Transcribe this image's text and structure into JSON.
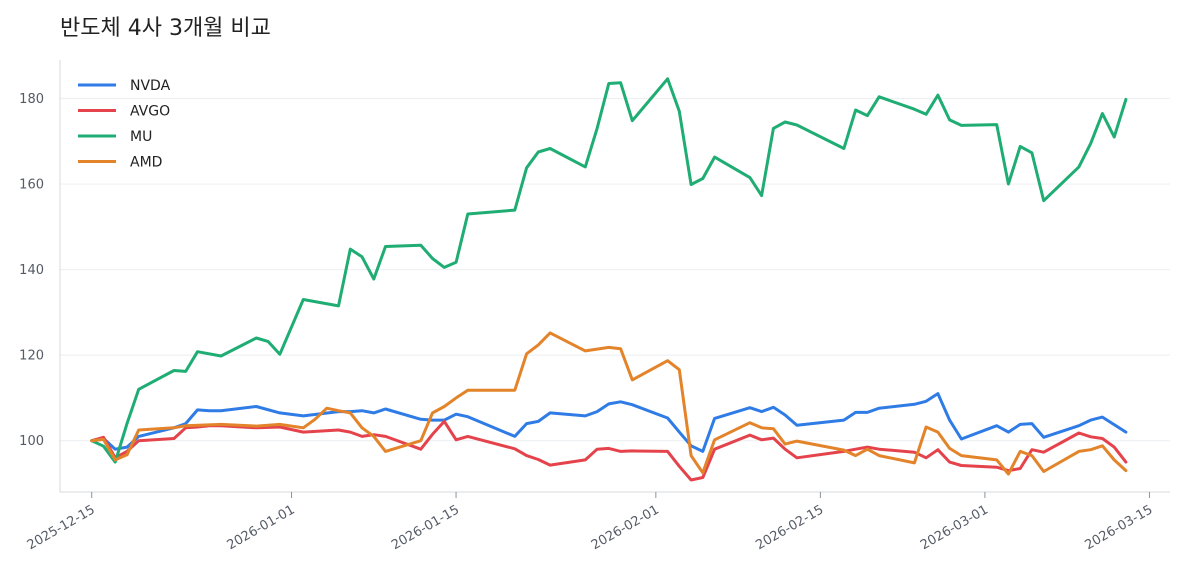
{
  "chart_data": {
    "type": "line",
    "title": "반도체 4사 3개월 비교",
    "xlabel": "",
    "ylabel": "",
    "ylim": [
      88,
      189
    ],
    "yticks": [
      100,
      120,
      140,
      160,
      180
    ],
    "xrange": [
      "2025-12-15",
      "2026-03-16"
    ],
    "xticks": [
      "2025-12-15",
      "2026-01-01",
      "2026-01-15",
      "2026-02-01",
      "2026-02-15",
      "2026-03-01",
      "2026-03-15"
    ],
    "grid": "horizontal",
    "legend_position": "top-left",
    "series": [
      {
        "name": "NVDA",
        "color": "#2f7ce6",
        "points": [
          [
            "2025-12-15",
            100
          ],
          [
            "2025-12-16",
            100.5
          ],
          [
            "2025-12-17",
            98
          ],
          [
            "2025-12-18",
            98.5
          ],
          [
            "2025-12-19",
            101
          ],
          [
            "2025-12-22",
            103
          ],
          [
            "2025-12-23",
            104
          ],
          [
            "2025-12-24",
            107.2
          ],
          [
            "2025-12-25",
            107
          ],
          [
            "2025-12-26",
            107
          ],
          [
            "2025-12-29",
            108
          ],
          [
            "2025-12-31",
            106.5
          ],
          [
            "2026-01-02",
            105.8
          ],
          [
            "2026-01-05",
            106.8
          ],
          [
            "2026-01-06",
            106.8
          ],
          [
            "2026-01-07",
            107
          ],
          [
            "2026-01-08",
            106.5
          ],
          [
            "2026-01-09",
            107.4
          ],
          [
            "2026-01-12",
            105
          ],
          [
            "2026-01-13",
            104.8
          ],
          [
            "2026-01-14",
            104.8
          ],
          [
            "2026-01-15",
            106.2
          ],
          [
            "2026-01-16",
            105.6
          ],
          [
            "2026-01-20",
            101
          ],
          [
            "2026-01-21",
            104
          ],
          [
            "2026-01-22",
            104.5
          ],
          [
            "2026-01-23",
            106.5
          ],
          [
            "2026-01-26",
            105.8
          ],
          [
            "2026-01-27",
            106.8
          ],
          [
            "2026-01-28",
            108.6
          ],
          [
            "2026-01-29",
            109.1
          ],
          [
            "2026-01-30",
            108.4
          ],
          [
            "2026-02-02",
            105.3
          ],
          [
            "2026-02-03",
            102
          ],
          [
            "2026-02-04",
            98.8
          ],
          [
            "2026-02-05",
            97.5
          ],
          [
            "2026-02-06",
            105.2
          ],
          [
            "2026-02-09",
            107.7
          ],
          [
            "2026-02-10",
            106.8
          ],
          [
            "2026-02-11",
            107.8
          ],
          [
            "2026-02-12",
            106
          ],
          [
            "2026-02-13",
            103.6
          ],
          [
            "2026-02-17",
            104.8
          ],
          [
            "2026-02-18",
            106.6
          ],
          [
            "2026-02-19",
            106.6
          ],
          [
            "2026-02-20",
            107.6
          ],
          [
            "2026-02-23",
            108.5
          ],
          [
            "2026-02-24",
            109.2
          ],
          [
            "2026-02-25",
            111
          ],
          [
            "2026-02-26",
            104.8
          ],
          [
            "2026-02-27",
            100.4
          ],
          [
            "2026-03-02",
            103.5
          ],
          [
            "2026-03-03",
            102
          ],
          [
            "2026-03-04",
            103.8
          ],
          [
            "2026-03-05",
            104
          ],
          [
            "2026-03-06",
            100.8
          ],
          [
            "2026-03-09",
            103.5
          ],
          [
            "2026-03-10",
            104.8
          ],
          [
            "2026-03-11",
            105.5
          ],
          [
            "2026-03-13",
            102
          ]
        ]
      },
      {
        "name": "AVGO",
        "color": "#e5434c",
        "points": [
          [
            "2025-12-15",
            100
          ],
          [
            "2025-12-16",
            100.8
          ],
          [
            "2025-12-17",
            96
          ],
          [
            "2025-12-18",
            97.5
          ],
          [
            "2025-12-19",
            100
          ],
          [
            "2025-12-22",
            100.5
          ],
          [
            "2025-12-23",
            103
          ],
          [
            "2025-12-24",
            103.2
          ],
          [
            "2025-12-25",
            103.5
          ],
          [
            "2025-12-26",
            103.5
          ],
          [
            "2025-12-29",
            103
          ],
          [
            "2025-12-31",
            103.2
          ],
          [
            "2026-01-02",
            102
          ],
          [
            "2026-01-05",
            102.5
          ],
          [
            "2026-01-06",
            102
          ],
          [
            "2026-01-07",
            101
          ],
          [
            "2026-01-08",
            101.4
          ],
          [
            "2026-01-09",
            101
          ],
          [
            "2026-01-12",
            98
          ],
          [
            "2026-01-13",
            101.5
          ],
          [
            "2026-01-14",
            104.5
          ],
          [
            "2026-01-15",
            100.2
          ],
          [
            "2026-01-16",
            101
          ],
          [
            "2026-01-20",
            98.1
          ],
          [
            "2026-01-21",
            96.5
          ],
          [
            "2026-01-22",
            95.6
          ],
          [
            "2026-01-23",
            94.3
          ],
          [
            "2026-01-26",
            95.5
          ],
          [
            "2026-01-27",
            98
          ],
          [
            "2026-01-28",
            98.2
          ],
          [
            "2026-01-29",
            97.5
          ],
          [
            "2026-01-30",
            97.6
          ],
          [
            "2026-02-02",
            97.5
          ],
          [
            "2026-02-03",
            94
          ],
          [
            "2026-02-04",
            90.8
          ],
          [
            "2026-02-05",
            91.4
          ],
          [
            "2026-02-06",
            98
          ],
          [
            "2026-02-09",
            101.3
          ],
          [
            "2026-02-10",
            100.2
          ],
          [
            "2026-02-11",
            100.6
          ],
          [
            "2026-02-12",
            98
          ],
          [
            "2026-02-13",
            96
          ],
          [
            "2026-02-17",
            97.5
          ],
          [
            "2026-02-18",
            98
          ],
          [
            "2026-02-19",
            98.5
          ],
          [
            "2026-02-20",
            98
          ],
          [
            "2026-02-23",
            97.3
          ],
          [
            "2026-02-24",
            96
          ],
          [
            "2026-02-25",
            97.9
          ],
          [
            "2026-02-26",
            95
          ],
          [
            "2026-02-27",
            94.2
          ],
          [
            "2026-03-02",
            93.8
          ],
          [
            "2026-03-03",
            93
          ],
          [
            "2026-03-04",
            93.5
          ],
          [
            "2026-03-05",
            97.9
          ],
          [
            "2026-03-06",
            97.3
          ],
          [
            "2026-03-09",
            101.8
          ],
          [
            "2026-03-10",
            100.9
          ],
          [
            "2026-03-11",
            100.5
          ],
          [
            "2026-03-12",
            98.5
          ],
          [
            "2026-03-13",
            95
          ]
        ]
      },
      {
        "name": "MU",
        "color": "#1fad74",
        "points": [
          [
            "2025-12-15",
            100
          ],
          [
            "2025-12-16",
            98.7
          ],
          [
            "2025-12-17",
            95
          ],
          [
            "2025-12-18",
            104
          ],
          [
            "2025-12-19",
            112
          ],
          [
            "2025-12-22",
            116.4
          ],
          [
            "2025-12-23",
            116.2
          ],
          [
            "2025-12-24",
            120.8
          ],
          [
            "2025-12-26",
            119.8
          ],
          [
            "2025-12-29",
            124
          ],
          [
            "2025-12-30",
            123.2
          ],
          [
            "2025-12-31",
            120.2
          ],
          [
            "2026-01-02",
            133
          ],
          [
            "2026-01-05",
            131.5
          ],
          [
            "2026-01-06",
            144.8
          ],
          [
            "2026-01-07",
            143
          ],
          [
            "2026-01-08",
            137.8
          ],
          [
            "2026-01-09",
            145.4
          ],
          [
            "2026-01-12",
            145.7
          ],
          [
            "2026-01-13",
            142.6
          ],
          [
            "2026-01-14",
            140.5
          ],
          [
            "2026-01-15",
            141.7
          ],
          [
            "2026-01-16",
            153
          ],
          [
            "2026-01-20",
            153.9
          ],
          [
            "2026-01-21",
            163.8
          ],
          [
            "2026-01-22",
            167.5
          ],
          [
            "2026-01-23",
            168.3
          ],
          [
            "2026-01-26",
            164
          ],
          [
            "2026-01-27",
            173
          ],
          [
            "2026-01-28",
            183.5
          ],
          [
            "2026-01-29",
            183.7
          ],
          [
            "2026-01-30",
            174.8
          ],
          [
            "2026-02-02",
            184.6
          ],
          [
            "2026-02-03",
            177
          ],
          [
            "2026-02-04",
            159.9
          ],
          [
            "2026-02-05",
            161.3
          ],
          [
            "2026-02-06",
            166.3
          ],
          [
            "2026-02-09",
            161.5
          ],
          [
            "2026-02-10",
            157.3
          ],
          [
            "2026-02-11",
            173
          ],
          [
            "2026-02-12",
            174.5
          ],
          [
            "2026-02-13",
            173.8
          ],
          [
            "2026-02-17",
            168.3
          ],
          [
            "2026-02-18",
            177.3
          ],
          [
            "2026-02-19",
            176
          ],
          [
            "2026-02-20",
            180.4
          ],
          [
            "2026-02-23",
            177.5
          ],
          [
            "2026-02-24",
            176.3
          ],
          [
            "2026-02-25",
            180.8
          ],
          [
            "2026-02-26",
            175
          ],
          [
            "2026-02-27",
            173.7
          ],
          [
            "2026-03-02",
            173.9
          ],
          [
            "2026-03-03",
            160
          ],
          [
            "2026-03-04",
            168.8
          ],
          [
            "2026-03-05",
            167.3
          ],
          [
            "2026-03-06",
            156.1
          ],
          [
            "2026-03-09",
            164
          ],
          [
            "2026-03-10",
            169.5
          ],
          [
            "2026-03-11",
            176.5
          ],
          [
            "2026-03-12",
            171
          ],
          [
            "2026-03-13",
            179.8
          ]
        ]
      },
      {
        "name": "AMD",
        "color": "#e3832a",
        "points": [
          [
            "2025-12-15",
            100
          ],
          [
            "2025-12-16",
            100.3
          ],
          [
            "2025-12-17",
            95.5
          ],
          [
            "2025-12-18",
            96.7
          ],
          [
            "2025-12-19",
            102.5
          ],
          [
            "2025-12-22",
            103
          ],
          [
            "2025-12-23",
            103.5
          ],
          [
            "2025-12-26",
            103.8
          ],
          [
            "2025-12-29",
            103.4
          ],
          [
            "2025-12-31",
            103.8
          ],
          [
            "2026-01-02",
            103
          ],
          [
            "2026-01-03",
            105
          ],
          [
            "2026-01-04",
            107.6
          ],
          [
            "2026-01-05",
            107
          ],
          [
            "2026-01-06",
            106.5
          ],
          [
            "2026-01-07",
            103
          ],
          [
            "2026-01-08",
            101
          ],
          [
            "2026-01-09",
            97.5
          ],
          [
            "2026-01-12",
            100
          ],
          [
            "2026-01-13",
            106.5
          ],
          [
            "2026-01-14",
            108
          ],
          [
            "2026-01-15",
            110
          ],
          [
            "2026-01-16",
            111.8
          ],
          [
            "2026-01-20",
            111.8
          ],
          [
            "2026-01-21",
            120.3
          ],
          [
            "2026-01-22",
            122.4
          ],
          [
            "2026-01-23",
            125.2
          ],
          [
            "2026-01-26",
            121
          ],
          [
            "2026-01-28",
            121.8
          ],
          [
            "2026-01-29",
            121.5
          ],
          [
            "2026-01-30",
            114.2
          ],
          [
            "2026-02-02",
            118.7
          ],
          [
            "2026-02-03",
            116.6
          ],
          [
            "2026-02-04",
            96.5
          ],
          [
            "2026-02-05",
            92.5
          ],
          [
            "2026-02-06",
            100.2
          ],
          [
            "2026-02-09",
            104.2
          ],
          [
            "2026-02-10",
            103
          ],
          [
            "2026-02-11",
            102.8
          ],
          [
            "2026-02-12",
            99.2
          ],
          [
            "2026-02-13",
            99.9
          ],
          [
            "2026-02-17",
            97.8
          ],
          [
            "2026-02-18",
            96.5
          ],
          [
            "2026-02-19",
            98
          ],
          [
            "2026-02-20",
            96.5
          ],
          [
            "2026-02-23",
            94.8
          ],
          [
            "2026-02-24",
            103.2
          ],
          [
            "2026-02-25",
            102
          ],
          [
            "2026-02-26",
            98.2
          ],
          [
            "2026-02-27",
            96.5
          ],
          [
            "2026-03-02",
            95.5
          ],
          [
            "2026-03-03",
            92.2
          ],
          [
            "2026-03-04",
            97.5
          ],
          [
            "2026-03-05",
            96.5
          ],
          [
            "2026-03-06",
            92.8
          ],
          [
            "2026-03-09",
            97.5
          ],
          [
            "2026-03-10",
            97.9
          ],
          [
            "2026-03-11",
            98.8
          ],
          [
            "2026-03-12",
            95.5
          ],
          [
            "2026-03-13",
            93
          ]
        ]
      }
    ]
  }
}
